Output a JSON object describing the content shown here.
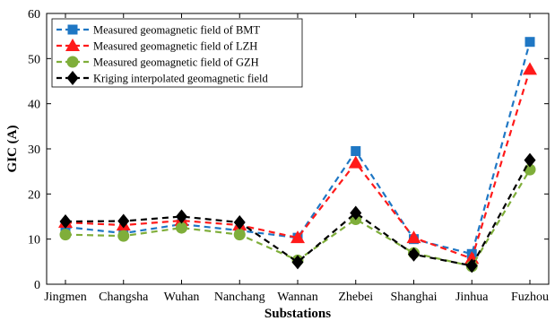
{
  "chart_data": {
    "type": "line",
    "xlabel": "Substations",
    "ylabel": "GIC (A)",
    "ylim": [
      0,
      60
    ],
    "yticks": [
      0,
      10,
      20,
      30,
      40,
      50,
      60
    ],
    "categories": [
      "Jingmen",
      "Changsha",
      "Wuhan",
      "Nanchang",
      "Wannan",
      "Zhebei",
      "Shanghai",
      "Jinhua",
      "Fuzhou"
    ],
    "grid": false,
    "legend_position": "top-left",
    "series": [
      {
        "name": "Measured geomagnetic field of BMT",
        "color": "#1f77c4",
        "marker": "square",
        "values": [
          12.7,
          11.3,
          13.3,
          11.9,
          10.3,
          29.5,
          10.0,
          6.7,
          53.7
        ]
      },
      {
        "name": "Measured geomagnetic field of LZH",
        "color": "#ff1a1a",
        "marker": "triangle",
        "values": [
          13.7,
          13.1,
          14.1,
          13.1,
          10.3,
          26.9,
          10.3,
          5.7,
          47.6
        ]
      },
      {
        "name": "Measured geomagnetic field of GZH",
        "color": "#7fae3a",
        "marker": "circle",
        "values": [
          11.0,
          10.7,
          12.5,
          11.0,
          5.3,
          14.4,
          6.9,
          4.0,
          25.4
        ]
      },
      {
        "name": "Kriging interpolated geomagnetic field",
        "color": "#000000",
        "marker": "diamond",
        "values": [
          13.9,
          14.0,
          15.0,
          13.7,
          4.9,
          15.8,
          6.6,
          4.1,
          27.5
        ]
      }
    ]
  }
}
